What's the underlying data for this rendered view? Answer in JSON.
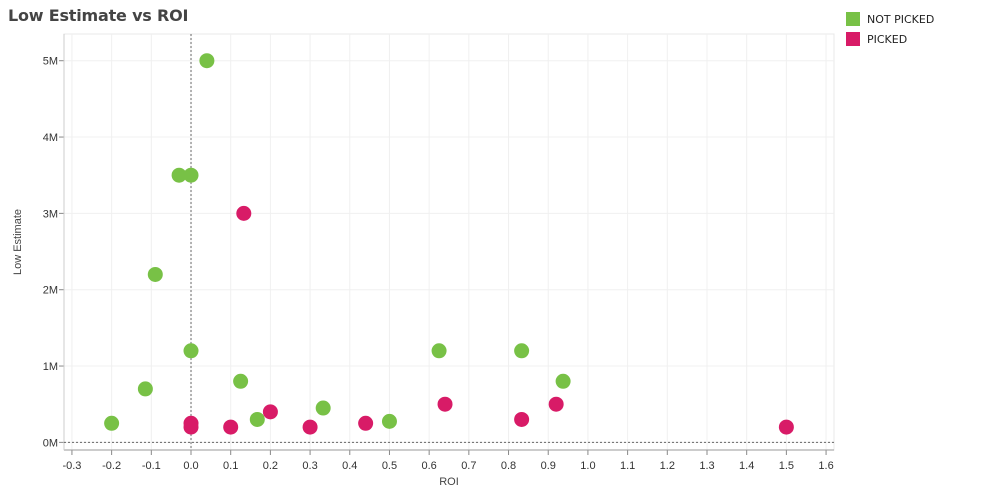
{
  "chart_data": {
    "type": "scatter",
    "title": "Low Estimate vs ROI",
    "xlabel": "ROI",
    "ylabel": "Low Estimate",
    "xlim": [
      -0.32,
      1.62
    ],
    "ylim": [
      -100000,
      5350000
    ],
    "x_ticks": [
      -0.3,
      -0.2,
      -0.1,
      0.0,
      0.1,
      0.2,
      0.3,
      0.4,
      0.5,
      0.6,
      0.7,
      0.8,
      0.9,
      1.0,
      1.1,
      1.2,
      1.3,
      1.4,
      1.5,
      1.6
    ],
    "x_tick_labels": [
      "-0.3",
      "-0.2",
      "-0.1",
      "0.0",
      "0.1",
      "0.2",
      "0.3",
      "0.4",
      "0.5",
      "0.6",
      "0.7",
      "0.8",
      "0.9",
      "1.0",
      "1.1",
      "1.2",
      "1.3",
      "1.4",
      "1.5",
      "1.6"
    ],
    "y_ticks": [
      0,
      1000000,
      2000000,
      3000000,
      4000000,
      5000000
    ],
    "y_tick_labels": [
      "0M",
      "1M",
      "2M",
      "3M",
      "4M",
      "5M"
    ],
    "grid": true,
    "legend_position": "top-right",
    "series": [
      {
        "name": "NOT PICKED",
        "color": "#78c146",
        "points": [
          {
            "x": -0.2,
            "y": 250000
          },
          {
            "x": -0.115,
            "y": 700000
          },
          {
            "x": -0.09,
            "y": 2200000
          },
          {
            "x": -0.03,
            "y": 3500000
          },
          {
            "x": 0.0,
            "y": 3500000
          },
          {
            "x": 0.0,
            "y": 1200000
          },
          {
            "x": 0.04,
            "y": 5000000
          },
          {
            "x": 0.125,
            "y": 800000
          },
          {
            "x": 0.167,
            "y": 300000
          },
          {
            "x": 0.333,
            "y": 450000
          },
          {
            "x": 0.5,
            "y": 275000
          },
          {
            "x": 0.625,
            "y": 1200000
          },
          {
            "x": 0.833,
            "y": 1200000
          },
          {
            "x": 0.9375,
            "y": 800000
          }
        ]
      },
      {
        "name": "PICKED",
        "color": "#d81b67",
        "points": [
          {
            "x": 0.0,
            "y": 250000
          },
          {
            "x": 0.0,
            "y": 200000
          },
          {
            "x": 0.1,
            "y": 200000
          },
          {
            "x": 0.133,
            "y": 3000000
          },
          {
            "x": 0.2,
            "y": 400000
          },
          {
            "x": 0.3,
            "y": 200000
          },
          {
            "x": 0.44,
            "y": 250000
          },
          {
            "x": 0.64,
            "y": 500000
          },
          {
            "x": 0.833,
            "y": 300000
          },
          {
            "x": 0.92,
            "y": 500000
          },
          {
            "x": 1.5,
            "y": 200000
          }
        ]
      }
    ]
  },
  "legend": {
    "items": [
      {
        "label": "NOT PICKED",
        "color": "#78c146"
      },
      {
        "label": "PICKED",
        "color": "#d81b67"
      }
    ]
  }
}
